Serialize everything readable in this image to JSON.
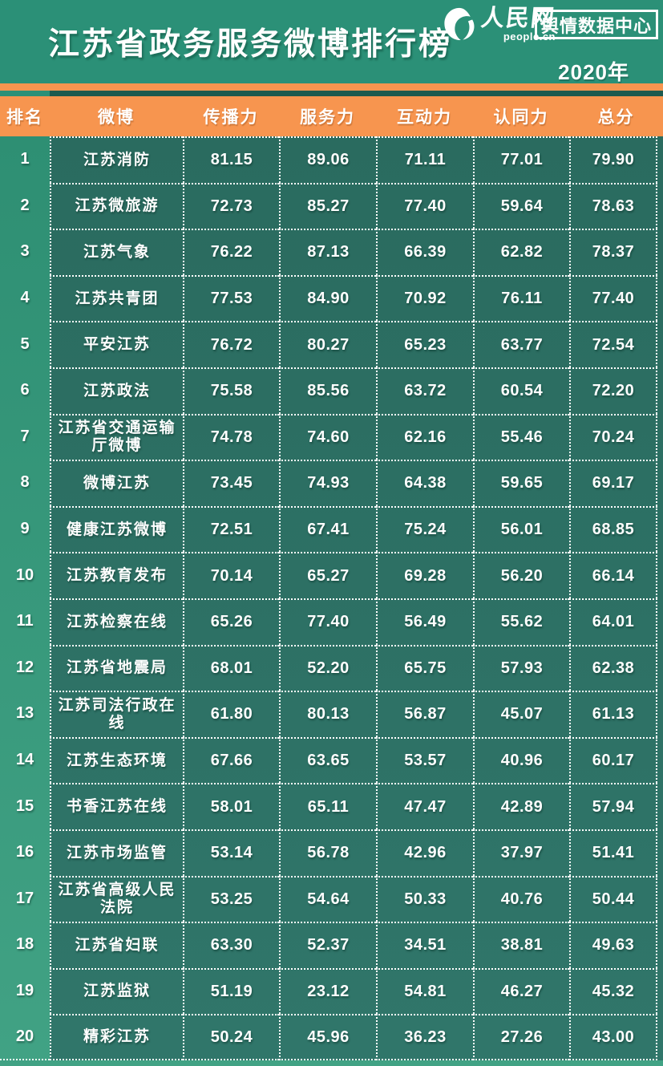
{
  "header": {
    "logo": {
      "brand_cn": "人民网",
      "brand_en": "people.cn",
      "dept_badge": "舆情数据中心"
    },
    "year": "2020年"
  },
  "chart_data": {
    "type": "table",
    "title": "江苏省政务服务微博排行榜",
    "columns": [
      "排名",
      "微博",
      "传播力",
      "服务力",
      "互动力",
      "认同力",
      "总分"
    ],
    "rows": [
      {
        "rank": 1,
        "name": "江苏消防",
        "scores": [
          81.15,
          89.06,
          71.11,
          77.01,
          79.9
        ]
      },
      {
        "rank": 2,
        "name": "江苏微旅游",
        "scores": [
          72.73,
          85.27,
          77.4,
          59.64,
          78.63
        ]
      },
      {
        "rank": 3,
        "name": "江苏气象",
        "scores": [
          76.22,
          87.13,
          66.39,
          62.82,
          78.37
        ]
      },
      {
        "rank": 4,
        "name": "江苏共青团",
        "scores": [
          77.53,
          84.9,
          70.92,
          76.11,
          77.4
        ]
      },
      {
        "rank": 5,
        "name": "平安江苏",
        "scores": [
          76.72,
          80.27,
          65.23,
          63.77,
          72.54
        ]
      },
      {
        "rank": 6,
        "name": "江苏政法",
        "scores": [
          75.58,
          85.56,
          63.72,
          60.54,
          72.2
        ]
      },
      {
        "rank": 7,
        "name": "江苏省交通运输厅微博",
        "scores": [
          74.78,
          74.6,
          62.16,
          55.46,
          70.24
        ]
      },
      {
        "rank": 8,
        "name": "微博江苏",
        "scores": [
          73.45,
          74.93,
          64.38,
          59.65,
          69.17
        ]
      },
      {
        "rank": 9,
        "name": "健康江苏微博",
        "scores": [
          72.51,
          67.41,
          75.24,
          56.01,
          68.85
        ]
      },
      {
        "rank": 10,
        "name": "江苏教育发布",
        "scores": [
          70.14,
          65.27,
          69.28,
          56.2,
          66.14
        ]
      },
      {
        "rank": 11,
        "name": "江苏检察在线",
        "scores": [
          65.26,
          77.4,
          56.49,
          55.62,
          64.01
        ]
      },
      {
        "rank": 12,
        "name": "江苏省地震局",
        "scores": [
          68.01,
          52.2,
          65.75,
          57.93,
          62.38
        ]
      },
      {
        "rank": 13,
        "name": "江苏司法行政在线",
        "scores": [
          61.8,
          80.13,
          56.87,
          45.07,
          61.13
        ]
      },
      {
        "rank": 14,
        "name": "江苏生态环境",
        "scores": [
          67.66,
          63.65,
          53.57,
          40.96,
          60.17
        ]
      },
      {
        "rank": 15,
        "name": "书香江苏在线",
        "scores": [
          58.01,
          65.11,
          47.47,
          42.89,
          57.94
        ]
      },
      {
        "rank": 16,
        "name": "江苏市场监管",
        "scores": [
          53.14,
          56.78,
          42.96,
          37.97,
          51.41
        ]
      },
      {
        "rank": 17,
        "name": "江苏省高级人民法院",
        "scores": [
          53.25,
          54.64,
          50.33,
          40.76,
          50.44
        ]
      },
      {
        "rank": 18,
        "name": "江苏省妇联",
        "scores": [
          63.3,
          52.37,
          34.51,
          38.81,
          49.63
        ]
      },
      {
        "rank": 19,
        "name": "江苏监狱",
        "scores": [
          51.19,
          23.12,
          54.81,
          46.27,
          45.32
        ]
      },
      {
        "rank": 20,
        "name": "精彩江苏",
        "scores": [
          50.24,
          45.96,
          36.23,
          27.26,
          43.0
        ]
      }
    ]
  },
  "colors": {
    "green": "#2B9077",
    "orange": "#F7954F",
    "teal_dark": "#1D5A4E",
    "cell_teal_top": "#2A6B5F",
    "cell_teal_bottom": "#30766A",
    "rank_green_top": "#2E8F73",
    "rank_green_bottom": "#41A284",
    "text_white": "#FFFFFF"
  }
}
